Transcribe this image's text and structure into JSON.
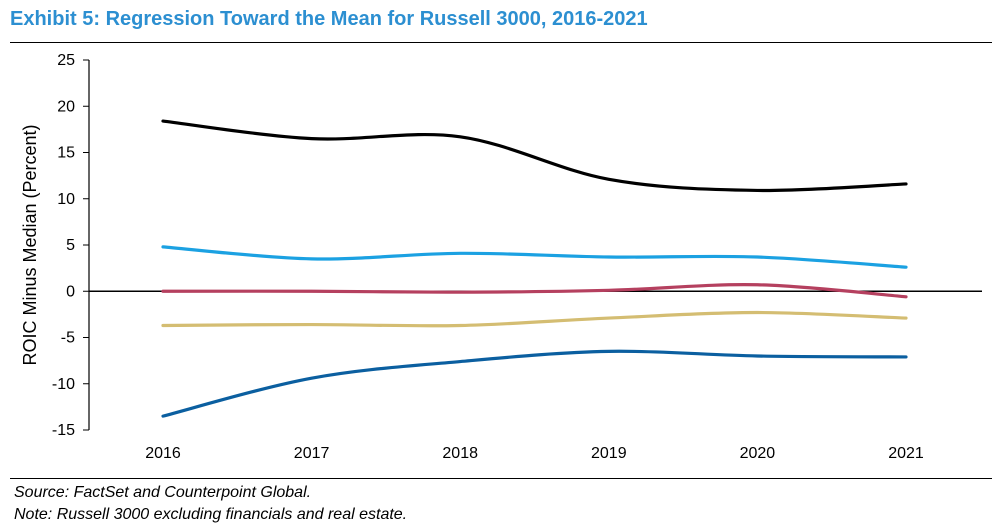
{
  "title": "Exhibit 5: Regression Toward the Mean for Russell 3000, 2016-2021",
  "footer": {
    "source": "Source: FactSet and Counterpoint Global.",
    "note": "Note: Russell 3000 excluding financials and real estate."
  },
  "chart_data": {
    "type": "line",
    "title": "Exhibit 5: Regression Toward the Mean for Russell 3000, 2016-2021",
    "xlabel": "",
    "ylabel": "ROIC Minus Median (Percent)",
    "x": [
      "2016",
      "2017",
      "2018",
      "2019",
      "2020",
      "2021"
    ],
    "ylim": [
      -15,
      25
    ],
    "yticks": [
      -15,
      -10,
      -5,
      0,
      5,
      10,
      15,
      20,
      25
    ],
    "grid": false,
    "legend": "none",
    "zero_line": true,
    "series": [
      {
        "color": "#000000",
        "values": [
          18.4,
          16.5,
          16.7,
          12.1,
          10.9,
          11.6
        ]
      },
      {
        "color": "#1ba1e2",
        "values": [
          4.8,
          3.5,
          4.1,
          3.7,
          3.7,
          2.6
        ]
      },
      {
        "color": "#b5405f",
        "values": [
          0.0,
          0.0,
          -0.1,
          0.1,
          0.7,
          -0.6
        ]
      },
      {
        "color": "#d4bd72",
        "values": [
          -3.7,
          -3.6,
          -3.7,
          -2.9,
          -2.3,
          -2.9
        ]
      },
      {
        "color": "#0b5fa0",
        "values": [
          -13.5,
          -9.4,
          -7.6,
          -6.5,
          -7.0,
          -7.1
        ]
      }
    ]
  }
}
